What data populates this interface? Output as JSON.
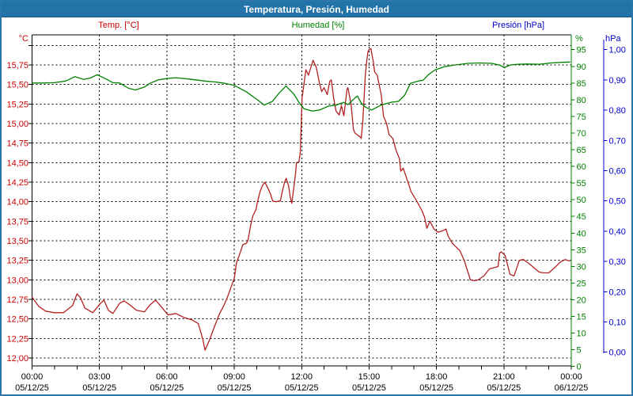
{
  "window": {
    "title": "Temperatura, Presión, Humedad"
  },
  "colors": {
    "titlebar_bg": "#2173a8",
    "frame_border": "#2a76ab",
    "temp_text": "#cc0000",
    "temp_line": "#b22222",
    "humidity": "#008000",
    "pressure": "#0000cc",
    "grid": "#000000",
    "background": "#ffffff"
  },
  "legend": {
    "temp": "Temp. [°C]",
    "humidity": "Humedad [%]",
    "pressure": "Presión [hPa]"
  },
  "axis_units": {
    "temp": "°C",
    "humidity": "%",
    "pressure": "hPa"
  },
  "chart_data": {
    "type": "line",
    "title": "Temperatura, Presión, Humedad",
    "grid": "dashed",
    "x_axis": {
      "range_hours": [
        0,
        24
      ],
      "major_tick_hours": 3,
      "minor_tick_hours": 1,
      "ticks": [
        [
          0,
          "00:00",
          "05/12/25"
        ],
        [
          3,
          "03:00",
          "05/12/25"
        ],
        [
          6,
          "06:00",
          "05/12/25"
        ],
        [
          9,
          "09:00",
          "05/12/25"
        ],
        [
          12,
          "12:00",
          "05/12/25"
        ],
        [
          15,
          "15:00",
          "05/12/25"
        ],
        [
          18,
          "18:00",
          "05/12/25"
        ],
        [
          21,
          "21:00",
          "05/12/25"
        ],
        [
          24,
          "00:00",
          "06/12/25"
        ]
      ]
    },
    "y_axes": {
      "temp": {
        "label": "Temp. [°C]",
        "range": [
          12.0,
          16.0
        ],
        "grid_step": 0.25,
        "ticks": [
          [
            15.75,
            "15,75"
          ],
          [
            15.5,
            "15,50"
          ],
          [
            15.25,
            "15,25"
          ],
          [
            15.0,
            "15,00"
          ],
          [
            14.75,
            "14,75"
          ],
          [
            14.5,
            "14,50"
          ],
          [
            14.25,
            "14,25"
          ],
          [
            14.0,
            "14,00"
          ],
          [
            13.75,
            "13,75"
          ],
          [
            13.5,
            "13,50"
          ],
          [
            13.25,
            "13,25"
          ],
          [
            13.0,
            "13,00"
          ],
          [
            12.75,
            "12,75"
          ],
          [
            12.5,
            "12,50"
          ],
          [
            12.25,
            "12,25"
          ],
          [
            12.0,
            "12,00"
          ]
        ]
      },
      "humidity": {
        "label": "Humedad [%]",
        "range": [
          0,
          100
        ],
        "ticks": [
          [
            95,
            "95"
          ],
          [
            90,
            "90"
          ],
          [
            85,
            "85"
          ],
          [
            80,
            "80"
          ],
          [
            75,
            "75"
          ],
          [
            70,
            "70"
          ],
          [
            65,
            "65"
          ],
          [
            60,
            "60"
          ],
          [
            55,
            "55"
          ],
          [
            50,
            "50"
          ],
          [
            45,
            "45"
          ],
          [
            40,
            "40"
          ],
          [
            35,
            "35"
          ],
          [
            30,
            "30"
          ],
          [
            25,
            "25"
          ],
          [
            20,
            "20"
          ],
          [
            15,
            "15"
          ],
          [
            10,
            "10"
          ],
          [
            5,
            "5"
          ],
          [
            0,
            "0"
          ]
        ]
      },
      "pressure": {
        "label": "Presión [hPa]",
        "range": [
          0.0,
          1.0
        ],
        "ticks": [
          [
            1.0,
            "1,00"
          ],
          [
            0.9,
            "0,90"
          ],
          [
            0.8,
            "0,80"
          ],
          [
            0.7,
            "0,70"
          ],
          [
            0.6,
            "0,60"
          ],
          [
            0.5,
            "0,50"
          ],
          [
            0.4,
            "0,40"
          ],
          [
            0.3,
            "0,30"
          ],
          [
            0.2,
            "0,20"
          ],
          [
            0.1,
            "0,10"
          ],
          [
            0.0,
            "0,00"
          ]
        ]
      }
    },
    "series": [
      {
        "name": "Temp. [°C]",
        "axis": "temp",
        "color": "#b22222",
        "points": [
          [
            0,
            12.78
          ],
          [
            0.3,
            12.66
          ],
          [
            0.6,
            12.6
          ],
          [
            1,
            12.58
          ],
          [
            1.4,
            12.58
          ],
          [
            1.8,
            12.67
          ],
          [
            2,
            12.82
          ],
          [
            2.16,
            12.77
          ],
          [
            2.35,
            12.64
          ],
          [
            2.7,
            12.58
          ],
          [
            3.05,
            12.7
          ],
          [
            3.2,
            12.74
          ],
          [
            3.4,
            12.61
          ],
          [
            3.6,
            12.57
          ],
          [
            3.9,
            12.7
          ],
          [
            4.1,
            12.73
          ],
          [
            4.3,
            12.69
          ],
          [
            4.65,
            12.61
          ],
          [
            5,
            12.59
          ],
          [
            5.25,
            12.68
          ],
          [
            5.5,
            12.74
          ],
          [
            5.8,
            12.64
          ],
          [
            6.05,
            12.55
          ],
          [
            6.4,
            12.57
          ],
          [
            6.75,
            12.52
          ],
          [
            7.1,
            12.49
          ],
          [
            7.4,
            12.44
          ],
          [
            7.6,
            12.24
          ],
          [
            7.7,
            12.1
          ],
          [
            7.9,
            12.23
          ],
          [
            8.05,
            12.35
          ],
          [
            8.2,
            12.46
          ],
          [
            8.35,
            12.57
          ],
          [
            8.55,
            12.68
          ],
          [
            8.7,
            12.78
          ],
          [
            8.85,
            12.9
          ],
          [
            9,
            13.02
          ],
          [
            9.1,
            13.22
          ],
          [
            9.27,
            13.35
          ],
          [
            9.38,
            13.45
          ],
          [
            9.55,
            13.47
          ],
          [
            9.62,
            13.52
          ],
          [
            9.73,
            13.7
          ],
          [
            9.83,
            13.82
          ],
          [
            9.97,
            13.9
          ],
          [
            10.02,
            13.98
          ],
          [
            10.15,
            14.13
          ],
          [
            10.26,
            14.21
          ],
          [
            10.36,
            14.25
          ],
          [
            10.5,
            14.17
          ],
          [
            10.61,
            14.1
          ],
          [
            10.71,
            14.01
          ],
          [
            10.85,
            14
          ],
          [
            11.05,
            14.01
          ],
          [
            11.14,
            14.13
          ],
          [
            11.24,
            14.25
          ],
          [
            11.31,
            14.3
          ],
          [
            11.42,
            14.2
          ],
          [
            11.49,
            14.06
          ],
          [
            11.56,
            13.98
          ],
          [
            11.66,
            14.2
          ],
          [
            11.73,
            14.37
          ],
          [
            11.77,
            14.5
          ],
          [
            11.88,
            14.51
          ],
          [
            11.94,
            14.63
          ],
          [
            12.02,
            15.33
          ],
          [
            12.19,
            15.69
          ],
          [
            12.3,
            15.62
          ],
          [
            12.51,
            15.81
          ],
          [
            12.65,
            15.72
          ],
          [
            12.79,
            15.52
          ],
          [
            12.89,
            15.41
          ],
          [
            13,
            15.46
          ],
          [
            13.14,
            15.37
          ],
          [
            13.25,
            15.54
          ],
          [
            13.32,
            15.56
          ],
          [
            13.42,
            15.33
          ],
          [
            13.53,
            15.16
          ],
          [
            13.67,
            15.11
          ],
          [
            13.77,
            15.23
          ],
          [
            13.88,
            15.1
          ],
          [
            14.02,
            15.44
          ],
          [
            14.06,
            15.46
          ],
          [
            14.2,
            15.25
          ],
          [
            14.3,
            14.93
          ],
          [
            14.37,
            14.88
          ],
          [
            14.5,
            14.85
          ],
          [
            14.6,
            14.83
          ],
          [
            14.65,
            14.81
          ],
          [
            14.72,
            15.03
          ],
          [
            14.78,
            15.34
          ],
          [
            14.83,
            15.61
          ],
          [
            14.9,
            15.81
          ],
          [
            14.95,
            15.92
          ],
          [
            15.01,
            15.95
          ],
          [
            15.08,
            15.96
          ],
          [
            15.18,
            15.81
          ],
          [
            15.25,
            15.66
          ],
          [
            15.36,
            15.62
          ],
          [
            15.54,
            15.37
          ],
          [
            15.64,
            15.1
          ],
          [
            15.78,
            15
          ],
          [
            15.89,
            14.86
          ],
          [
            16.06,
            14.81
          ],
          [
            16.2,
            14.66
          ],
          [
            16.35,
            14.55
          ],
          [
            16.41,
            14.39
          ],
          [
            16.52,
            14.43
          ],
          [
            16.66,
            14.31
          ],
          [
            16.87,
            14.13
          ],
          [
            17.12,
            14.01
          ],
          [
            17.36,
            13.88
          ],
          [
            17.47,
            13.8
          ],
          [
            17.57,
            13.66
          ],
          [
            17.71,
            13.75
          ],
          [
            17.89,
            13.65
          ],
          [
            18.07,
            13.61
          ],
          [
            18.28,
            13.63
          ],
          [
            18.42,
            13.65
          ],
          [
            18.52,
            13.56
          ],
          [
            18.7,
            13.47
          ],
          [
            19.05,
            13.37
          ],
          [
            19.23,
            13.25
          ],
          [
            19.4,
            13.1
          ],
          [
            19.51,
            13
          ],
          [
            19.7,
            12.99
          ],
          [
            19.86,
            13
          ],
          [
            20.11,
            13.05
          ],
          [
            20.36,
            13.14
          ],
          [
            20.6,
            13.16
          ],
          [
            20.74,
            13.17
          ],
          [
            20.81,
            13.34
          ],
          [
            20.88,
            13.36
          ],
          [
            21.06,
            13.31
          ],
          [
            21.27,
            13.07
          ],
          [
            21.45,
            13.05
          ],
          [
            21.69,
            13.25
          ],
          [
            21.87,
            13.26
          ],
          [
            22.11,
            13.21
          ],
          [
            22.32,
            13.16
          ],
          [
            22.57,
            13.1
          ],
          [
            22.75,
            13.09
          ],
          [
            23,
            13.09
          ],
          [
            23.27,
            13.16
          ],
          [
            23.52,
            13.23
          ],
          [
            23.73,
            13.26
          ],
          [
            23.95,
            13.24
          ]
        ]
      },
      {
        "name": "Humedad [%]",
        "axis": "humidity",
        "color": "#008000",
        "points": [
          [
            0,
            85
          ],
          [
            0.5,
            85
          ],
          [
            1,
            85.1
          ],
          [
            1.5,
            85.6
          ],
          [
            1.9,
            86.9
          ],
          [
            2.3,
            86.1
          ],
          [
            2.6,
            86.5
          ],
          [
            2.9,
            87.5
          ],
          [
            3.3,
            86.2
          ],
          [
            3.6,
            85.1
          ],
          [
            3.9,
            85
          ],
          [
            4.3,
            83.4
          ],
          [
            4.6,
            82.9
          ],
          [
            5,
            83.8
          ],
          [
            5.25,
            84.9
          ],
          [
            5.6,
            85.9
          ],
          [
            5.95,
            86.3
          ],
          [
            6.4,
            86.6
          ],
          [
            7.1,
            86.1
          ],
          [
            7.8,
            85.5
          ],
          [
            8.15,
            85.3
          ],
          [
            8.5,
            85
          ],
          [
            9,
            84.3
          ],
          [
            9.55,
            82.3
          ],
          [
            10,
            80.1
          ],
          [
            10.33,
            78.4
          ],
          [
            10.5,
            78.9
          ],
          [
            10.7,
            79.5
          ],
          [
            11,
            82
          ],
          [
            11.3,
            84.1
          ],
          [
            11.66,
            81.6
          ],
          [
            11.9,
            79
          ],
          [
            12.1,
            77.3
          ],
          [
            12.47,
            76.6
          ],
          [
            12.8,
            76.9
          ],
          [
            13.2,
            78.1
          ],
          [
            13.5,
            78.3
          ],
          [
            13.88,
            79.2
          ],
          [
            14.06,
            78.5
          ],
          [
            14.37,
            80.5
          ],
          [
            14.48,
            81.1
          ],
          [
            14.65,
            79
          ],
          [
            14.83,
            77.8
          ],
          [
            15.11,
            76.9
          ],
          [
            15.54,
            78.4
          ],
          [
            15.96,
            79.2
          ],
          [
            16.31,
            79.5
          ],
          [
            16.59,
            81.4
          ],
          [
            16.84,
            84.9
          ],
          [
            17.2,
            85.6
          ],
          [
            17.4,
            85.8
          ],
          [
            17.64,
            87.5
          ],
          [
            17.93,
            88.9
          ],
          [
            18.35,
            89.9
          ],
          [
            18.8,
            90.4
          ],
          [
            19.4,
            90.9
          ],
          [
            19.93,
            91
          ],
          [
            20.46,
            90.9
          ],
          [
            20.8,
            90.4
          ],
          [
            21.02,
            89.6
          ],
          [
            21.27,
            90.4
          ],
          [
            21.6,
            90.6
          ],
          [
            22.04,
            90.7
          ],
          [
            22.57,
            90.6
          ],
          [
            23.1,
            91
          ],
          [
            23.6,
            91.2
          ],
          [
            23.95,
            91.3
          ]
        ]
      },
      {
        "name": "Presión [hPa]",
        "axis": "pressure",
        "color": "#0000cc",
        "points": []
      }
    ]
  }
}
